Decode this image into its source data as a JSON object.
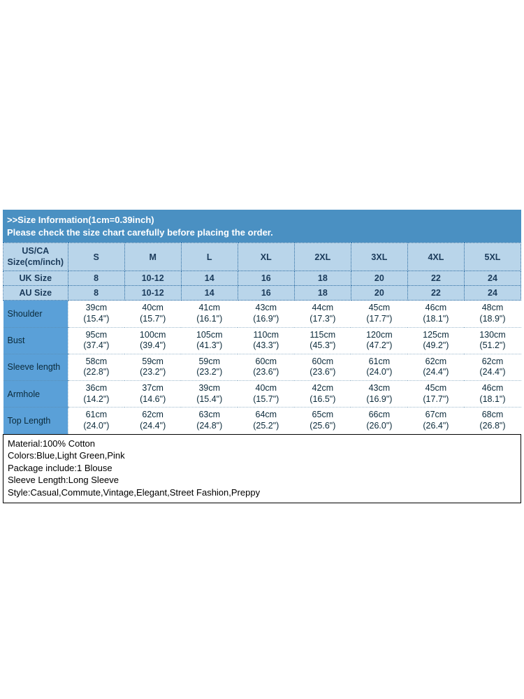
{
  "banner": {
    "line1": ">>Size Information(1cm=0.39inch)",
    "line2": "Please check the size chart carefully before placing the order."
  },
  "header": {
    "row_label": "US/CA Size(cm/inch)",
    "sizes": [
      "S",
      "M",
      "L",
      "XL",
      "2XL",
      "3XL",
      "4XL",
      "5XL"
    ],
    "uk_label": "UK Size",
    "uk_sizes": [
      "8",
      "10-12",
      "14",
      "16",
      "18",
      "20",
      "22",
      "24"
    ],
    "au_label": "AU Size",
    "au_sizes": [
      "8",
      "10-12",
      "14",
      "16",
      "18",
      "20",
      "22",
      "24"
    ]
  },
  "measurements": [
    {
      "label": "Shoulder",
      "cells": [
        "39cm (15.4\")",
        "40cm (15.7\")",
        "41cm (16.1\")",
        "43cm (16.9\")",
        "44cm (17.3\")",
        "45cm (17.7\")",
        "46cm (18.1\")",
        "48cm (18.9\")"
      ]
    },
    {
      "label": "Bust",
      "cells": [
        "95cm (37.4\")",
        "100cm (39.4\")",
        "105cm (41.3\")",
        "110cm (43.3\")",
        "115cm (45.3\")",
        "120cm (47.2\")",
        "125cm (49.2\")",
        "130cm (51.2\")"
      ]
    },
    {
      "label": "Sleeve length",
      "cells": [
        "58cm (22.8\")",
        "59cm (23.2\")",
        "59cm (23.2\")",
        "60cm (23.6\")",
        "60cm (23.6\")",
        "61cm (24.0\")",
        "62cm (24.4\")",
        "62cm (24.4\")"
      ]
    },
    {
      "label": "Armhole",
      "cells": [
        "36cm (14.2\")",
        "37cm (14.6\")",
        "39cm (15.4\")",
        "40cm (15.7\")",
        "42cm (16.5\")",
        "43cm (16.9\")",
        "45cm (17.7\")",
        "46cm (18.1\")"
      ]
    },
    {
      "label": "Top Length",
      "cells": [
        "61cm (24.0\")",
        "62cm (24.4\")",
        "63cm (24.8\")",
        "64cm (25.2\")",
        "65cm (25.6\")",
        "66cm (26.0\")",
        "67cm (26.4\")",
        "68cm (26.8\")"
      ]
    }
  ],
  "description": {
    "material": "Material:100% Cotton",
    "colors": "Colors:Blue,Light Green,Pink",
    "package": "Package include:1 Blouse",
    "sleeve": "Sleeve Length:Long Sleeve",
    "style": "Style:Casual,Commute,Vintage,Elegant,Street Fashion,Preppy"
  },
  "layout": {
    "col_label_width_pct": 12.5,
    "col_data_width_pct": 10.9375
  },
  "colors": {
    "banner_bg": "#4a90c2",
    "banner_text": "#ffffff",
    "header_bg": "#b9d5ea",
    "header_border": "#2a6aa0",
    "label_bg": "#5aa0d8",
    "cell_border": "#9cb8cc",
    "text_dark": "#0b2a3a",
    "desc_border": "#000000"
  }
}
